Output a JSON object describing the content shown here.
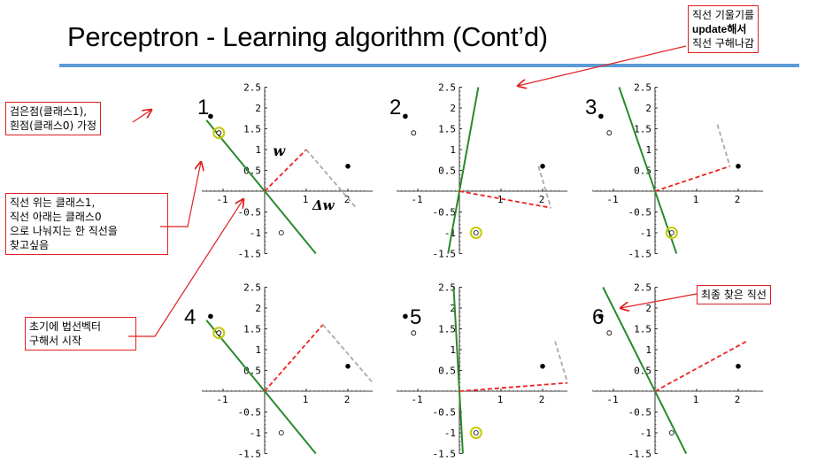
{
  "title": "Perceptron - Learning algorithm (Cont’d)",
  "notes": {
    "top_right": [
      "직선 기울기를",
      "update해서",
      "직선 구해나감"
    ],
    "classes": [
      "검은점(클래스1),",
      "흰점(클래스0) 가정"
    ],
    "divide": [
      "직선 위는 클래스1,",
      "직선 아래는 클래스0",
      "으로 나눠지는 한 직선을",
      "찾고싶음"
    ],
    "init": [
      "초기에 법선벡터",
      "구해서 시작"
    ],
    "final": "최종 찾은 직선"
  },
  "y_ticks": [
    "2.5",
    "2",
    "1.5",
    "1",
    "0.5",
    "-0.5",
    "-1",
    "-1.5"
  ],
  "x_ticks": [
    "-1",
    "1",
    "2"
  ],
  "colors": {
    "line": "#2a8a2a",
    "vector": "#ee2222",
    "delta": "#aaaaaa",
    "highlight": "#c8c800",
    "note_border": "#e02020",
    "rule": "#5b9bd5"
  },
  "panels": [
    {
      "num": "1",
      "slope": -1.22,
      "w": [
        1,
        1
      ],
      "delta": [
        [
          1,
          1
        ],
        [
          2.2,
          -0.4
        ]
      ],
      "highlight": 1,
      "labels": true
    },
    {
      "num": "2",
      "slope": 5.5,
      "w": [
        2.2,
        -0.4
      ],
      "delta": [
        [
          1.9,
          0.6
        ],
        [
          2.2,
          -0.4
        ]
      ],
      "highlight": 2,
      "labels": false
    },
    {
      "num": "3",
      "slope": -2.9,
      "w": [
        1.8,
        0.6
      ],
      "delta": [
        [
          1.5,
          1.6
        ],
        [
          1.8,
          0.6
        ]
      ],
      "highlight": 2,
      "labels": false
    },
    {
      "num": "4",
      "slope": -1.22,
      "w": [
        1.4,
        1.6
      ],
      "delta": [
        [
          1.4,
          1.6
        ],
        [
          2.6,
          0.2
        ]
      ],
      "highlight": 1,
      "labels": false
    },
    {
      "num": "5",
      "slope": -18,
      "w": [
        2.6,
        0.2
      ],
      "delta": [
        [
          2.3,
          1.2
        ],
        [
          2.6,
          0.2
        ]
      ],
      "highlight": 2,
      "labels": false
    },
    {
      "num": "6",
      "slope": -2.0,
      "w": [
        2.2,
        1.2
      ],
      "delta": null,
      "highlight": 0,
      "labels": false
    }
  ],
  "points": {
    "black": [
      [
        -1.3,
        1.8
      ],
      [
        2.0,
        0.6
      ]
    ],
    "white": [
      [
        -1.1,
        1.4
      ],
      [
        0.4,
        -1.0
      ]
    ],
    "hl_coords": [
      [
        -1.1,
        1.4
      ],
      [
        0.4,
        -1.0
      ]
    ]
  }
}
